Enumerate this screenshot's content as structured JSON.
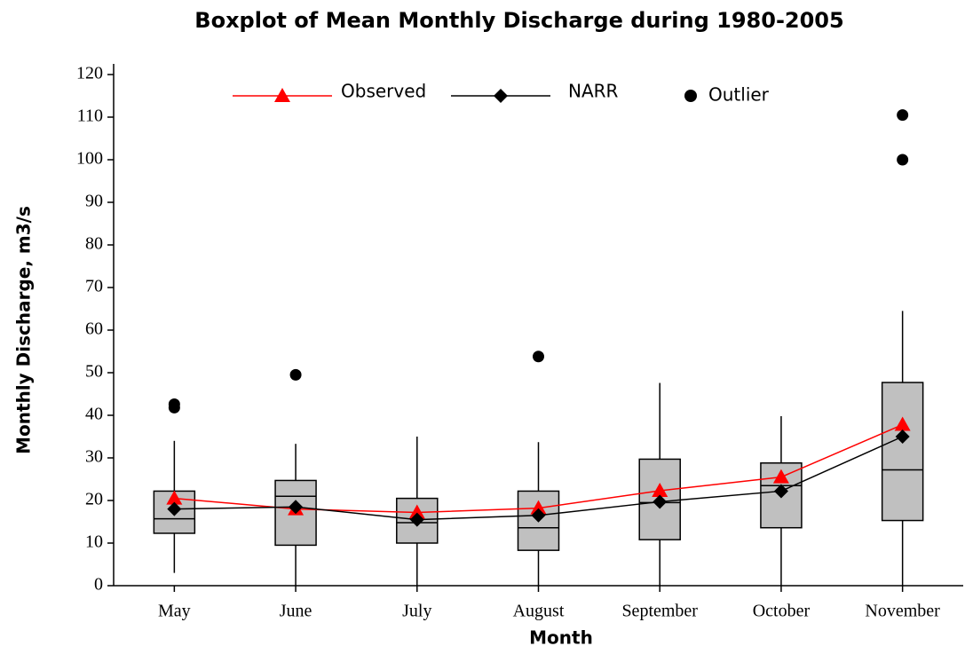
{
  "chart_data": {
    "type": "boxplot",
    "title": "Boxplot of Mean Monthly Discharge during 1980-2005",
    "x_label": "Month",
    "y_label": "Monthly Discharge, m3/s",
    "categories": [
      "May",
      "June",
      "July",
      "August",
      "September",
      "October",
      "November"
    ],
    "box_color": "#c0c0c0",
    "boxes": [
      {
        "min": 3,
        "q1": 12.3,
        "median": 15.7,
        "q3": 22.2,
        "max": 34,
        "outliers": [
          41.8,
          42.6
        ]
      },
      {
        "min": 0,
        "q1": 9.5,
        "median": 21,
        "q3": 24.7,
        "max": 33.3,
        "outliers": [
          49.5
        ]
      },
      {
        "min": 0,
        "q1": 10,
        "median": 14.8,
        "q3": 20.5,
        "max": 35,
        "outliers": []
      },
      {
        "min": 0,
        "q1": 8.3,
        "median": 13.6,
        "q3": 22.2,
        "max": 33.7,
        "outliers": [
          53.8
        ]
      },
      {
        "min": 0,
        "q1": 10.8,
        "median": 19.5,
        "q3": 29.7,
        "max": 47.6,
        "outliers": []
      },
      {
        "min": 0,
        "q1": 13.6,
        "median": 23.5,
        "q3": 28.8,
        "max": 39.8,
        "outliers": []
      },
      {
        "min": 0,
        "q1": 15.3,
        "median": 27.2,
        "q3": 47.7,
        "max": 64.5,
        "outliers": [
          100,
          110.5
        ]
      }
    ],
    "outlier_name": "Outlier",
    "outlier_color": "#000000",
    "series": [
      {
        "name": "Observed",
        "color": "#ff0000",
        "marker": "triangle",
        "values": [
          20.5,
          18,
          17.2,
          18.2,
          22.3,
          25.5,
          37.8
        ]
      },
      {
        "name": "NARR",
        "color": "#000000",
        "marker": "diamond",
        "values": [
          18,
          18.5,
          15.5,
          16.5,
          19.7,
          22.2,
          35
        ]
      }
    ],
    "ylim": [
      0,
      120
    ],
    "yticks": [
      0,
      10,
      20,
      30,
      40,
      50,
      60,
      70,
      80,
      90,
      100,
      110,
      120
    ]
  }
}
